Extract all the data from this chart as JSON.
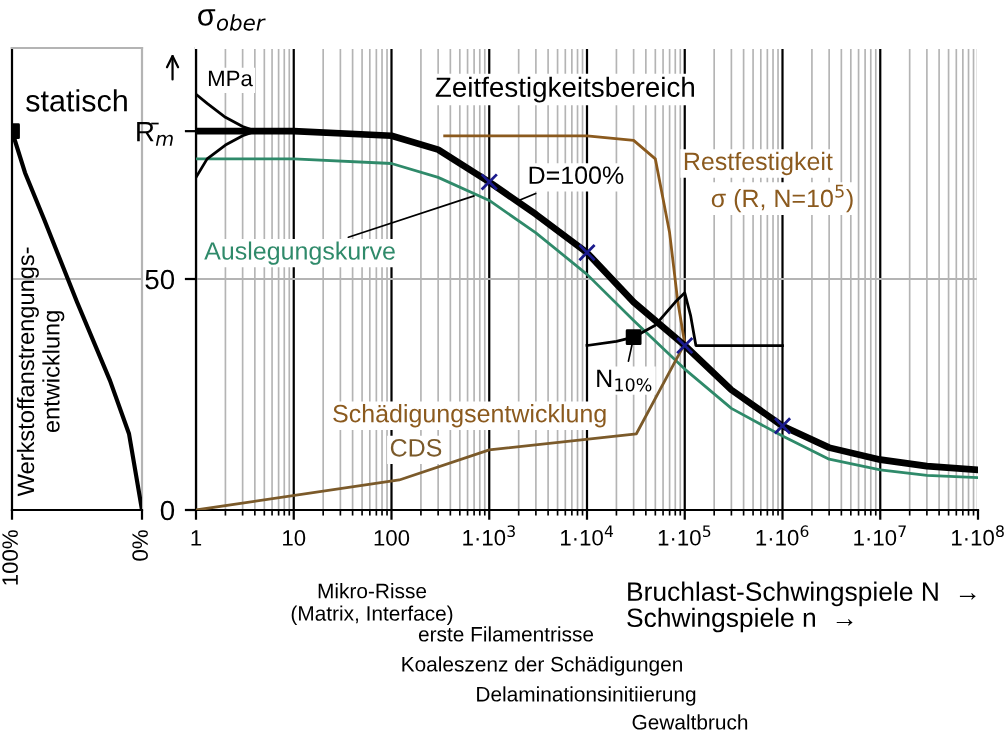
{
  "chart_data": [
    {
      "type": "line",
      "x": [
        100,
        90,
        75.4,
        50,
        24.6,
        10,
        0
      ],
      "series": [
        {
          "color": "#000000",
          "values": [
            82,
            73,
            63,
            45,
            28,
            16.5,
            0
          ]
        },
        {
          "type": "scatter",
          "color": "#000000",
          "marker": "square",
          "x": [
            100
          ],
          "values": [
            82
          ]
        }
      ],
      "xlim": [
        100,
        0
      ],
      "xticks": [
        {
          "value": 100,
          "label": "100%"
        },
        {
          "value": 0,
          "label": "0%"
        }
      ],
      "ylim": [
        0,
        100
      ],
      "tick_labels": "x",
      "grid": false,
      "ref_lines": [
        {
          "axis": "y",
          "value": 50,
          "label": null,
          "color": "#b4b4b4"
        }
      ],
      "annotations": [
        "statisch",
        "Werkstoffanstrengungs-\nentwicklung"
      ]
    },
    {
      "type": "line",
      "log": "x",
      "ylabel": "σ$_{ober}$",
      "xlabel": "Bruchlast-Schwingspiele N  →",
      "series": [
        {
          "color": "#000000",
          "x": [
            1,
            10,
            100,
            300,
            1000,
            3000,
            10000,
            30000,
            100000,
            300000,
            1000000,
            3000000,
            10000000,
            30000000,
            100000000
          ],
          "values": [
            82,
            82,
            81,
            78,
            71,
            64,
            55.7,
            45,
            35.6,
            26,
            18.2,
            13.5,
            10.9,
            9.5,
            8.7
          ]
        },
        {
          "color": "#2f8a6a",
          "x": [
            1,
            10,
            100,
            300,
            1000,
            3000,
            10000,
            30000,
            100000,
            300000,
            1000000,
            3000000,
            10000000,
            30000000,
            100000000
          ],
          "values": [
            76,
            76,
            75,
            72,
            67,
            60,
            51,
            41,
            30.5,
            22,
            16,
            11,
            8.7,
            7.5,
            7
          ]
        },
        {
          "color": "#8b5a1e",
          "x": [
            350,
            10000,
            30000,
            50000,
            70000,
            85000,
            100000
          ],
          "values": [
            81,
            81,
            80,
            76,
            60,
            45,
            36
          ]
        },
        {
          "color": "#000000",
          "x": [
            10000,
            20000,
            30000,
            50000,
            80000,
            100000,
            115000,
            130000,
            1000000
          ],
          "values": [
            35.6,
            36.5,
            37.4,
            40,
            45,
            47,
            42,
            35.6,
            35.6
          ]
        },
        {
          "color": "#000000",
          "x": [
            1,
            1.3,
            2,
            3,
            4.1,
            3,
            2,
            1.3,
            1
          ],
          "values": [
            90,
            88,
            85,
            83,
            82,
            81,
            79,
            76,
            72
          ]
        },
        {
          "color": "#7b5a2a",
          "x": [
            1,
            120,
            1000,
            32000,
            100000
          ],
          "values": [
            0,
            6.5,
            13,
            16.5,
            36
          ]
        },
        {
          "type": "scatter",
          "color": "#1a1a8c",
          "marker": "cross",
          "x": [
            1000,
            10000,
            100000,
            1000000
          ],
          "values": [
            71,
            55.7,
            35.6,
            18.2
          ]
        },
        {
          "type": "scatter",
          "color": "#000000",
          "marker": "square",
          "x": [
            30000
          ],
          "values": [
            37.4
          ]
        }
      ],
      "xlim": [
        1,
        100000000
      ],
      "xticks": [
        1,
        10,
        100,
        {
          "value": 1000,
          "label": "1·10$^{3}$"
        },
        {
          "value": 10000,
          "label": "1·10$^{4}$"
        },
        {
          "value": 100000,
          "label": "1·10$^{5}$"
        },
        {
          "value": 1000000,
          "label": "1·10$^{6}$"
        },
        {
          "value": 10000000,
          "label": "1·10$^{7}$"
        },
        {
          "value": 100000000,
          "label": "1·10$^{8}$"
        }
      ],
      "ylim": [
        0,
        100
      ],
      "yticks": [
        0,
        50,
        {
          "value": 82,
          "label": "R̄$_{m}$"
        }
      ],
      "grid": "x",
      "ref_lines": [
        {
          "axis": "y",
          "value": 50,
          "label": null,
          "color": "#b4b4b4"
        }
      ],
      "annotations": [
        "MPa",
        "Zeitfestigkeitsbereich",
        {
          "text": "D=100%",
          "x": 2000,
          "y": 67
        },
        {
          "text": "Auslegungskurve",
          "x": 700,
          "y": 68
        },
        "Restfestigkeit",
        "σ (R, N=10$^{5}$)",
        {
          "text": "N$_{10%}$",
          "x": 30000,
          "y": 37.4
        },
        "Schädigungsentwicklung",
        "CDS",
        "Schwingspiele n  →",
        "Mikro-Risse\n(Matrix, Interface)",
        "erste Filamentrisse",
        "Koaleszenz der Schädigungen",
        "Delaminationsinitiierung",
        "Gewaltbruch"
      ]
    }
  ]
}
